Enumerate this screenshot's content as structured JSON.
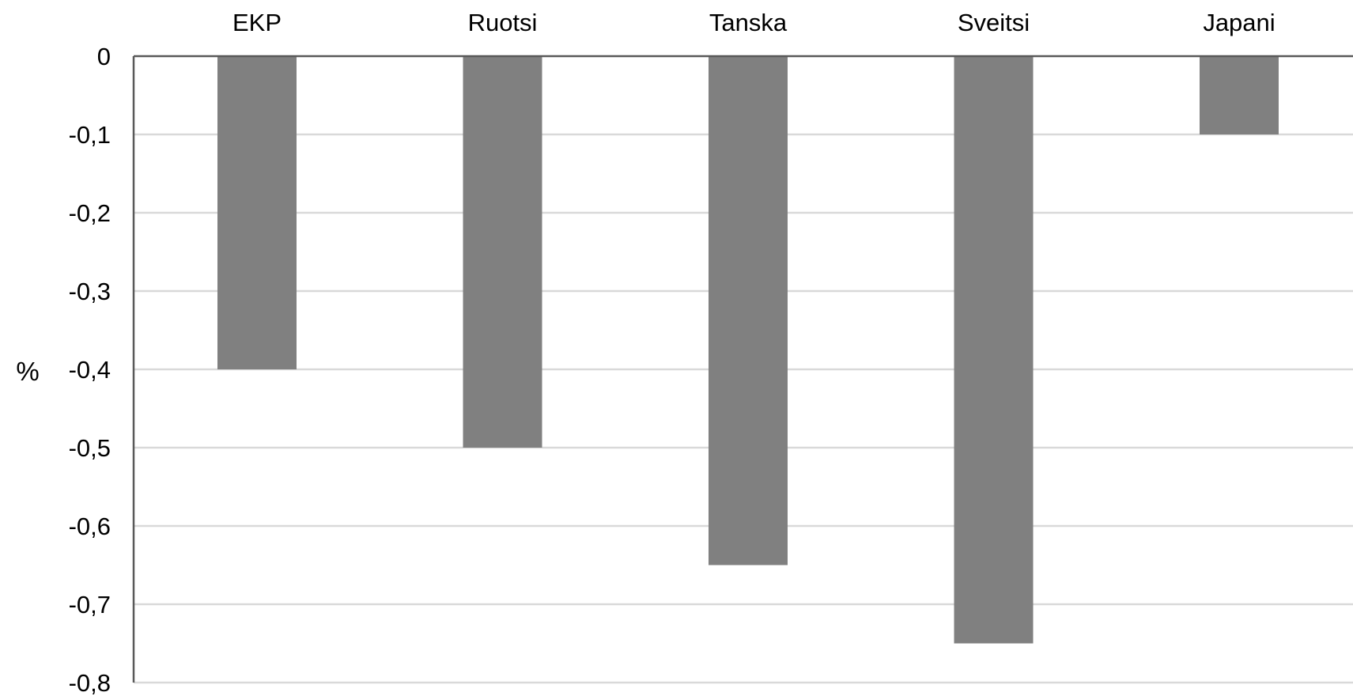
{
  "chart_data": {
    "type": "bar",
    "categories": [
      "EKP",
      "Ruotsi",
      "Tanska",
      "Sveitsi",
      "Japani"
    ],
    "values": [
      -0.4,
      -0.5,
      -0.65,
      -0.75,
      -0.1
    ],
    "ylabel": "%",
    "ylim": [
      -0.8,
      0
    ],
    "yticks": [
      0,
      -0.1,
      -0.2,
      -0.3,
      -0.4,
      -0.5,
      -0.6,
      -0.7,
      -0.8
    ],
    "ytick_labels": [
      "0",
      "-0,1",
      "-0,2",
      "-0,3",
      "-0,4",
      "-0,5",
      "-0,6",
      "-0,7",
      "-0,8"
    ],
    "category_axis_position": "top",
    "grid": true,
    "legend": "none",
    "bar_color": "#808080"
  }
}
